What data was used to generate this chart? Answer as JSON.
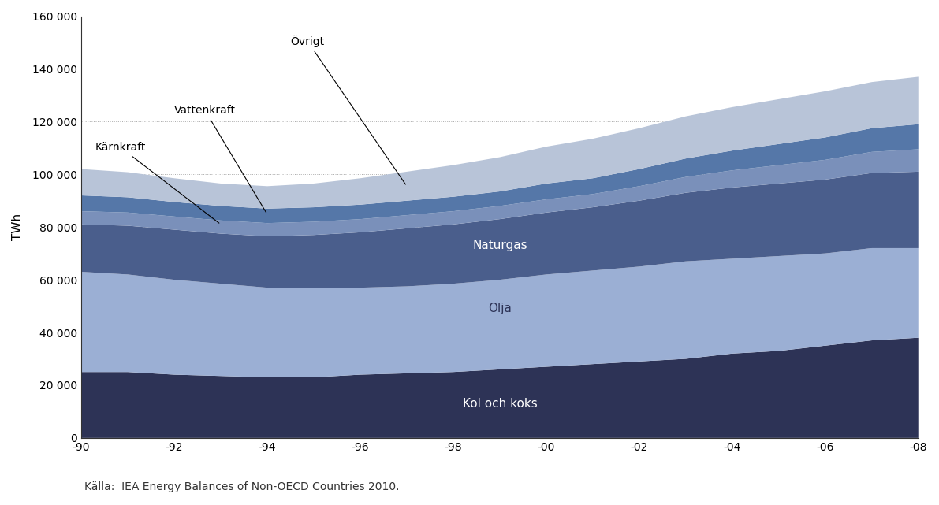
{
  "years": [
    1990,
    1991,
    1992,
    1993,
    1994,
    1995,
    1996,
    1997,
    1998,
    1999,
    2000,
    2001,
    2002,
    2003,
    2004,
    2005,
    2006,
    2007,
    2008
  ],
  "kol_och_koks": [
    25000,
    25000,
    24000,
    23500,
    23000,
    23000,
    24000,
    24500,
    25000,
    26000,
    27000,
    28000,
    29000,
    30000,
    32000,
    33000,
    35000,
    37000,
    38000
  ],
  "olja": [
    38000,
    37000,
    36000,
    35000,
    34000,
    34000,
    33000,
    33000,
    33500,
    34000,
    35000,
    35500,
    36000,
    37000,
    36000,
    36000,
    35000,
    35000,
    34000
  ],
  "naturgas": [
    18000,
    18500,
    19000,
    19000,
    19500,
    20000,
    21000,
    22000,
    22500,
    23000,
    23500,
    24000,
    25000,
    26000,
    27000,
    27500,
    28000,
    28500,
    29000
  ],
  "karnkraft": [
    5000,
    5000,
    5000,
    5000,
    5000,
    5000,
    5000,
    5000,
    5000,
    5000,
    5000,
    5000,
    5500,
    6000,
    6500,
    7000,
    7500,
    8000,
    8500
  ],
  "vattenkraft": [
    6000,
    5800,
    5500,
    5500,
    5500,
    5500,
    5500,
    5500,
    5500,
    5500,
    6000,
    6000,
    6500,
    7000,
    7500,
    8000,
    8500,
    9000,
    9500
  ],
  "ovrigt": [
    10000,
    9500,
    9000,
    8500,
    8500,
    9000,
    10000,
    11000,
    12000,
    13000,
    14000,
    15000,
    15500,
    16000,
    16500,
    17000,
    17500,
    17500,
    18000
  ],
  "colors": {
    "kol_och_koks": "#2d3356",
    "olja": "#9bafd4",
    "naturgas": "#4a5e8c",
    "karnkraft": "#7a90ba",
    "vattenkraft": "#5577a8",
    "ovrigt": "#b8c4d8"
  },
  "labels": {
    "kol_och_koks": "Kol och koks",
    "olja": "Olja",
    "naturgas": "Naturgas",
    "karnkraft": "Kärnkraft",
    "vattenkraft": "Vattenkraft",
    "ovrigt": "Övrigt"
  },
  "ylabel": "TWh",
  "ylim": [
    0,
    160000
  ],
  "yticks": [
    0,
    20000,
    40000,
    60000,
    80000,
    100000,
    120000,
    140000,
    160000
  ],
  "xtick_positions": [
    1990,
    1992,
    1994,
    1996,
    1998,
    2000,
    2002,
    2004,
    2006,
    2008
  ],
  "xtick_labels": [
    "-90",
    "-92",
    "-94",
    "-96",
    "-98",
    "-00",
    "-02",
    "-04",
    "-06",
    "-08"
  ],
  "source_text": "Källa:  IEA Energy Balances of Non-OECD Countries 2010.",
  "background_color": "#ffffff",
  "grid_color": "#aaaaaa"
}
